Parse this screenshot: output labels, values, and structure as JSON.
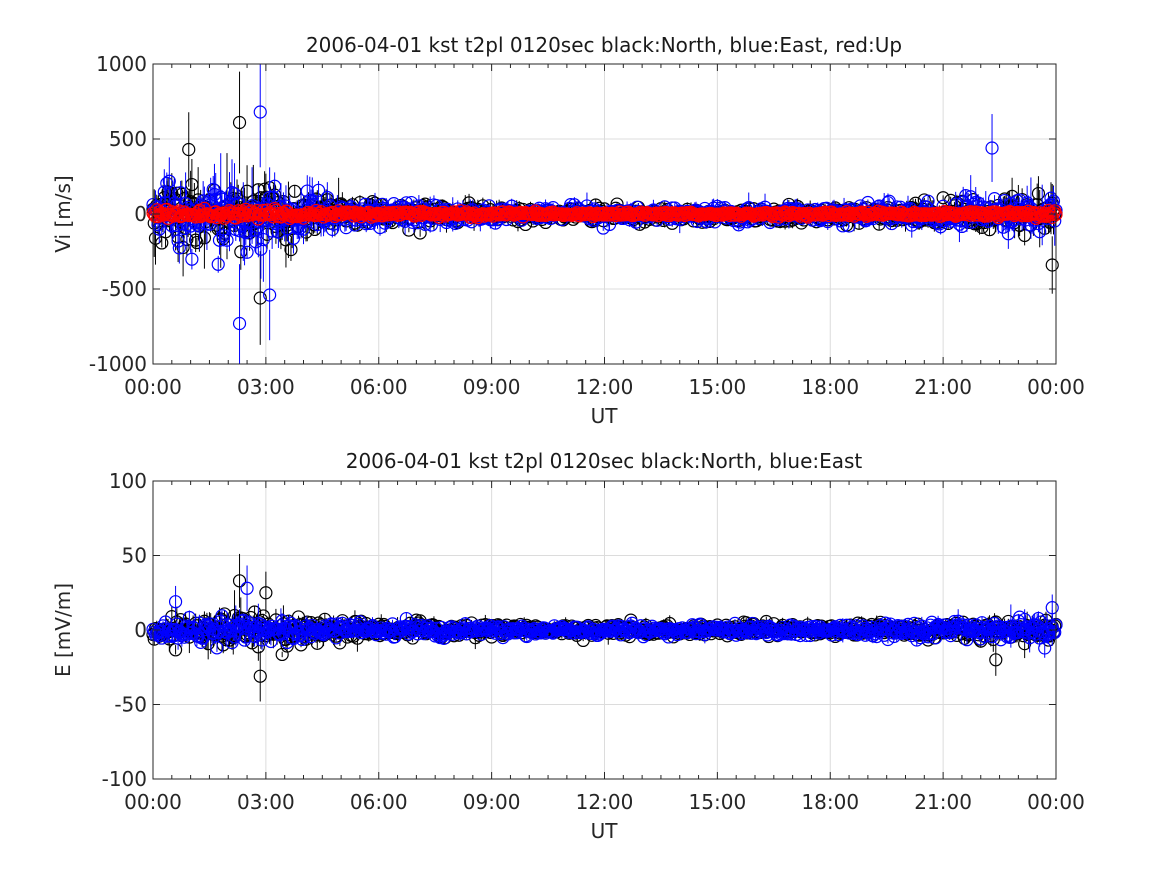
{
  "chart_data": [
    {
      "type": "scatter",
      "title": "2006-04-01 kst t2pl 0120sec black:North, blue:East, red:Up",
      "xlabel": "UT",
      "ylabel": "Vi [m/s]",
      "xlim_hours": [
        0,
        24
      ],
      "ylim": [
        -1000,
        1000
      ],
      "yticks": [
        -1000,
        -500,
        0,
        500,
        1000
      ],
      "xtick_labels": [
        "00:00",
        "03:00",
        "06:00",
        "09:00",
        "12:00",
        "15:00",
        "18:00",
        "21:00",
        "00:00"
      ],
      "grid": true,
      "marker": "open-circle with vertical error bars",
      "interval_sec": 120,
      "series": [
        {
          "name": "North",
          "color": "#000000",
          "noise_envelope": [
            [
              0,
              160
            ],
            [
              2.5,
              220
            ],
            [
              4,
              140
            ],
            [
              5.5,
              80
            ],
            [
              9,
              50
            ],
            [
              12,
              45
            ],
            [
              15,
              45
            ],
            [
              18,
              50
            ],
            [
              21,
              70
            ],
            [
              24,
              130
            ]
          ],
          "extremes": [
            [
              0.95,
              430
            ],
            [
              2.3,
              610
            ],
            [
              2.85,
              -560
            ],
            [
              23.9,
              -340
            ]
          ]
        },
        {
          "name": "East",
          "color": "#0000ff",
          "noise_envelope": [
            [
              0,
              150
            ],
            [
              2.5,
              230
            ],
            [
              4,
              140
            ],
            [
              5.5,
              90
            ],
            [
              9,
              55
            ],
            [
              12,
              50
            ],
            [
              15,
              55
            ],
            [
              18,
              55
            ],
            [
              21,
              75
            ],
            [
              24,
              120
            ]
          ],
          "extremes": [
            [
              2.3,
              -730
            ],
            [
              2.85,
              680
            ],
            [
              3.1,
              -540
            ],
            [
              22.3,
              440
            ]
          ]
        },
        {
          "name": "Up",
          "color": "#ff0000",
          "noise_envelope": [
            [
              0,
              25
            ],
            [
              3,
              30
            ],
            [
              6,
              15
            ],
            [
              12,
              12
            ],
            [
              18,
              12
            ],
            [
              24,
              20
            ]
          ],
          "extremes": []
        }
      ]
    },
    {
      "type": "scatter",
      "title": "2006-04-01 kst t2pl 0120sec black:North, blue:East",
      "xlabel": "UT",
      "ylabel": "E [mV/m]",
      "xlim_hours": [
        0,
        24
      ],
      "ylim": [
        -100,
        100
      ],
      "yticks": [
        -100,
        -50,
        0,
        50,
        100
      ],
      "xtick_labels": [
        "00:00",
        "03:00",
        "06:00",
        "09:00",
        "12:00",
        "15:00",
        "18:00",
        "21:00",
        "00:00"
      ],
      "grid": true,
      "marker": "open-circle with vertical error bars",
      "interval_sec": 120,
      "series": [
        {
          "name": "North",
          "color": "#000000",
          "noise_envelope": [
            [
              0,
              7
            ],
            [
              2.5,
              11
            ],
            [
              4,
              7
            ],
            [
              6,
              5
            ],
            [
              12,
              4
            ],
            [
              18,
              4
            ],
            [
              21,
              5
            ],
            [
              24,
              7
            ]
          ],
          "extremes": [
            [
              2.3,
              33
            ],
            [
              2.85,
              -31
            ],
            [
              3.0,
              25
            ],
            [
              22.4,
              -20
            ]
          ]
        },
        {
          "name": "East",
          "color": "#0000ff",
          "noise_envelope": [
            [
              0,
              6
            ],
            [
              2.5,
              9
            ],
            [
              4,
              6
            ],
            [
              6,
              4
            ],
            [
              12,
              3
            ],
            [
              18,
              4
            ],
            [
              21,
              5
            ],
            [
              24,
              7
            ]
          ],
          "extremes": [
            [
              0.6,
              19
            ],
            [
              2.5,
              28
            ],
            [
              23.9,
              15
            ]
          ]
        }
      ]
    }
  ]
}
